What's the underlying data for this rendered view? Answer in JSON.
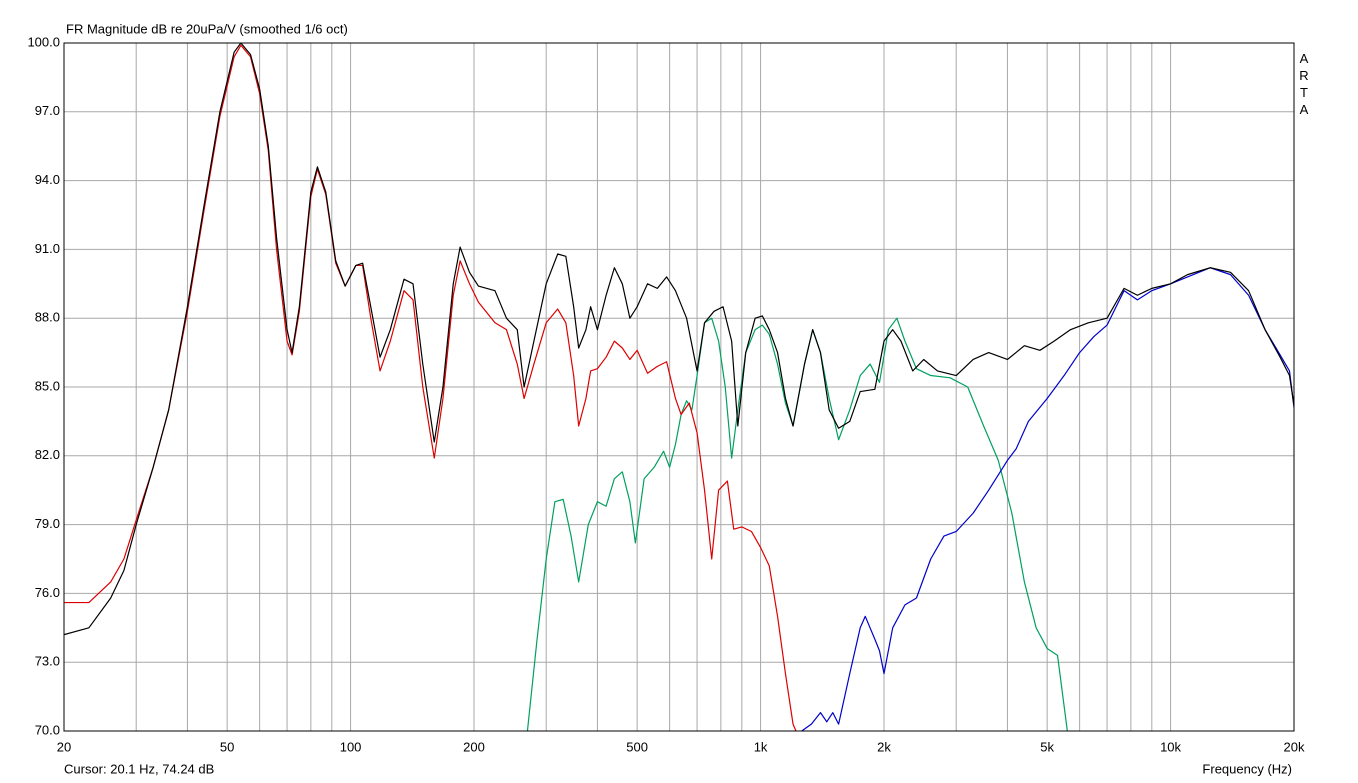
{
  "chart_data": {
    "type": "line",
    "title": "FR Magnitude dB re 20uPa/V (smoothed 1/6 oct)",
    "watermark": "ARTA",
    "cursor": "Cursor: 20.1 Hz, 74.24 dB",
    "x_label": "Frequency (Hz)",
    "x_scale": "log",
    "grid": true,
    "xlim": [
      20,
      20000
    ],
    "ylim": [
      70,
      100
    ],
    "xticks": [
      20,
      50,
      100,
      200,
      500,
      {
        "value": 1000,
        "label": "1k"
      },
      {
        "value": 2000,
        "label": "2k"
      },
      {
        "value": 5000,
        "label": "5k"
      },
      {
        "value": 10000,
        "label": "10k"
      },
      {
        "value": 20000,
        "label": "20k"
      }
    ],
    "x_minor_ticks": [
      30,
      40,
      60,
      70,
      80,
      90,
      300,
      400,
      600,
      700,
      800,
      900,
      3000,
      4000,
      6000,
      7000,
      8000,
      9000
    ],
    "yticks": [
      {
        "value": 70,
        "label": "70.0"
      },
      {
        "value": 73,
        "label": "73.0"
      },
      {
        "value": 76,
        "label": "76.0"
      },
      {
        "value": 79,
        "label": "79.0"
      },
      {
        "value": 82,
        "label": "82.0"
      },
      {
        "value": 85,
        "label": "85.0"
      },
      {
        "value": 88,
        "label": "88.0"
      },
      {
        "value": 91,
        "label": "91.0"
      },
      {
        "value": 94,
        "label": "94.0"
      },
      {
        "value": 97,
        "label": "97.0"
      },
      {
        "value": 100,
        "label": "100.0"
      }
    ],
    "series": [
      {
        "color": "#00a060",
        "x": [
          270,
          285,
          300,
          315,
          330,
          345,
          360,
          380,
          400,
          420,
          440,
          460,
          480,
          495,
          520,
          550,
          580,
          600,
          620,
          640,
          660,
          680,
          700,
          730,
          760,
          790,
          820,
          850,
          880,
          920,
          970,
          1010,
          1050,
          1100,
          1150,
          1200,
          1280,
          1340,
          1400,
          1470,
          1550,
          1650,
          1750,
          1850,
          1950,
          2050,
          2150,
          2250,
          2400,
          2600,
          2900,
          3200,
          3500,
          3800,
          4100,
          4400,
          4700,
          5000,
          5300,
          5600
        ],
        "values": [
          70,
          74,
          77.5,
          80,
          80.1,
          78.5,
          76.5,
          79,
          80,
          79.8,
          81,
          81.3,
          80,
          78.2,
          81,
          81.5,
          82.2,
          81.5,
          82.5,
          83.8,
          84.4,
          84,
          85.5,
          87.8,
          88,
          87,
          85,
          81.9,
          84,
          86.5,
          87.5,
          87.7,
          87.3,
          86,
          84.3,
          83.3,
          86,
          87.5,
          86.5,
          84.5,
          82.7,
          84,
          85.5,
          86,
          85.2,
          87.5,
          88,
          87,
          85.8,
          85.5,
          85.4,
          85,
          83.3,
          81.8,
          79.5,
          76.5,
          74.5,
          73.6,
          73.3,
          70
        ]
      },
      {
        "color": "#0000cc",
        "x": [
          1260,
          1330,
          1400,
          1450,
          1500,
          1550,
          1650,
          1750,
          1800,
          1900,
          1950,
          2000,
          2100,
          2250,
          2400,
          2600,
          2800,
          3000,
          3300,
          3600,
          4000,
          4200,
          4500,
          5000,
          5500,
          6000,
          6500,
          7000,
          7700,
          8300,
          9000,
          10000,
          11000,
          12500,
          14000,
          15500,
          17000,
          18500,
          19500,
          20000
        ],
        "values": [
          70,
          70.3,
          70.8,
          70.4,
          70.8,
          70.3,
          72.5,
          74.5,
          75,
          74,
          73.5,
          72.5,
          74.5,
          75.5,
          75.8,
          77.5,
          78.5,
          78.7,
          79.5,
          80.5,
          81.8,
          82.3,
          83.5,
          84.5,
          85.5,
          86.5,
          87.2,
          87.7,
          89.2,
          88.8,
          89.2,
          89.5,
          89.8,
          90.2,
          89.9,
          89,
          87.5,
          86.4,
          85.7,
          84.1
        ]
      },
      {
        "color": "#dd0000",
        "x": [
          20,
          23,
          26,
          28,
          30,
          33,
          36,
          40,
          44,
          48,
          52,
          54,
          57,
          60,
          63,
          66,
          70,
          72,
          75,
          80,
          83,
          87,
          92,
          97,
          103,
          107,
          112,
          118,
          125,
          135,
          142,
          150,
          160,
          168,
          178,
          185,
          195,
          205,
          225,
          240,
          255,
          265,
          280,
          300,
          320,
          335,
          350,
          360,
          375,
          385,
          400,
          420,
          440,
          460,
          480,
          500,
          530,
          560,
          590,
          620,
          640,
          670,
          700,
          730,
          760,
          790,
          830,
          860,
          900,
          950,
          1000,
          1050,
          1100,
          1150,
          1200,
          1220
        ],
        "values": [
          75.6,
          75.6,
          76.5,
          77.5,
          79.2,
          81.5,
          84,
          88.3,
          92.8,
          96.8,
          99.4,
          99.9,
          99.4,
          97.8,
          95.3,
          91,
          87,
          86.4,
          88.3,
          93.3,
          94.5,
          93.4,
          90.4,
          89.4,
          90.3,
          90.3,
          88,
          85.7,
          87,
          89.2,
          88.8,
          85,
          81.9,
          84.5,
          89,
          90.5,
          89.5,
          88.7,
          87.8,
          87.5,
          86,
          84.5,
          86,
          87.8,
          88.4,
          87.8,
          85.5,
          83.3,
          84.5,
          85.7,
          85.8,
          86.3,
          87,
          86.7,
          86.2,
          86.6,
          85.6,
          85.9,
          86.1,
          84.5,
          83.8,
          84.3,
          83,
          80.5,
          77.5,
          80.5,
          80.9,
          78.8,
          78.9,
          78.7,
          78,
          77.2,
          75,
          72.5,
          70.3,
          70
        ]
      },
      {
        "color": "#000000",
        "x": [
          20,
          23,
          26,
          28,
          30,
          33,
          36,
          40,
          44,
          48,
          52,
          54,
          57,
          60,
          63,
          66,
          70,
          72,
          75,
          80,
          83,
          87,
          92,
          97,
          103,
          107,
          112,
          118,
          125,
          135,
          142,
          150,
          160,
          168,
          178,
          185,
          195,
          205,
          225,
          240,
          255,
          265,
          280,
          300,
          320,
          335,
          350,
          360,
          375,
          385,
          400,
          420,
          440,
          460,
          480,
          500,
          530,
          560,
          590,
          620,
          660,
          700,
          730,
          770,
          810,
          850,
          880,
          920,
          970,
          1010,
          1050,
          1100,
          1150,
          1200,
          1280,
          1340,
          1400,
          1470,
          1550,
          1650,
          1750,
          1900,
          2000,
          2100,
          2200,
          2350,
          2500,
          2700,
          3000,
          3300,
          3600,
          4000,
          4400,
          4800,
          5200,
          5700,
          6300,
          7000,
          7700,
          8300,
          9000,
          10000,
          11000,
          12500,
          14000,
          15500,
          17000,
          18500,
          19500,
          20000
        ],
        "values": [
          74.2,
          74.5,
          75.8,
          77,
          79,
          81.5,
          84,
          88.5,
          93,
          97,
          99.6,
          100,
          99.5,
          98,
          95.5,
          91.5,
          87.5,
          86.5,
          88.5,
          93.5,
          94.6,
          93.5,
          90.5,
          89.4,
          90.3,
          90.4,
          88.5,
          86.3,
          87.5,
          89.7,
          89.5,
          86,
          82.6,
          85,
          89.5,
          91.1,
          90,
          89.4,
          89.2,
          88,
          87.5,
          85,
          87,
          89.5,
          90.8,
          90.7,
          88.5,
          86.7,
          87.5,
          88.5,
          87.5,
          89,
          90.2,
          89.5,
          88,
          88.5,
          89.5,
          89.3,
          89.8,
          89.2,
          88,
          85.7,
          87.8,
          88.3,
          88.5,
          87,
          83.3,
          86.5,
          88,
          88.1,
          87.5,
          86.5,
          84.5,
          83.3,
          86,
          87.5,
          86.5,
          84,
          83.2,
          83.5,
          84.8,
          84.9,
          87,
          87.5,
          87,
          85.7,
          86.2,
          85.7,
          85.5,
          86.2,
          86.5,
          86.2,
          86.8,
          86.6,
          87,
          87.5,
          87.8,
          88,
          89.3,
          89,
          89.3,
          89.5,
          89.9,
          90.2,
          90,
          89.2,
          87.5,
          86.3,
          85.5,
          84.2
        ]
      }
    ]
  }
}
